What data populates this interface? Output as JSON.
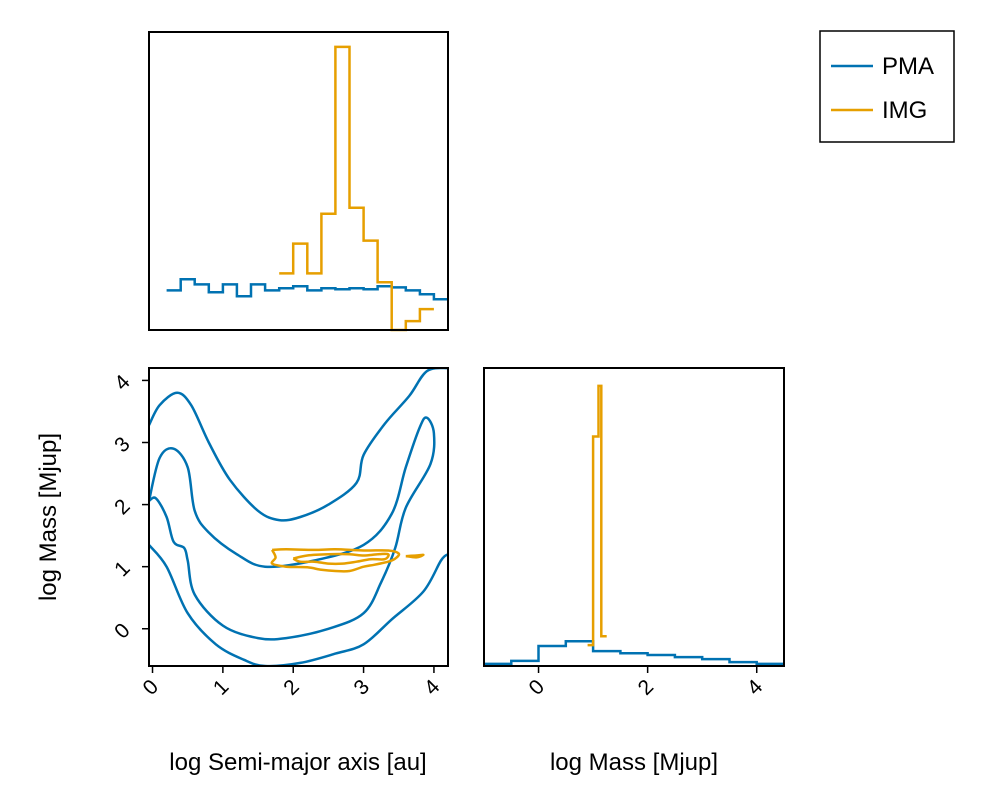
{
  "legend": {
    "position": "top-right",
    "entries": [
      {
        "label": "PMA",
        "color": "#0072b2"
      },
      {
        "label": "IMG",
        "color": "#e69f00"
      }
    ]
  },
  "chart_data": [
    {
      "panel": "top-left",
      "type": "histogram",
      "xlim": [
        -0.05,
        4.2
      ],
      "ylim": [
        0,
        1
      ],
      "x_variable": "log Semi-major axis [au]",
      "series": [
        {
          "name": "PMA",
          "color": "#0072b2",
          "edges": [
            0.2,
            0.4,
            0.6,
            0.8,
            1.0,
            1.2,
            1.4,
            1.6,
            1.8,
            2.0,
            2.2,
            2.4,
            2.6,
            2.8,
            3.0,
            3.2,
            3.4,
            3.6,
            3.8,
            4.0,
            4.2
          ],
          "heights": [
            0.133,
            0.17,
            0.153,
            0.127,
            0.153,
            0.113,
            0.153,
            0.133,
            0.14,
            0.147,
            0.133,
            0.14,
            0.137,
            0.14,
            0.137,
            0.147,
            0.143,
            0.133,
            0.12,
            0.103
          ]
        },
        {
          "name": "IMG",
          "color": "#e69f00",
          "edges": [
            1.8,
            2.0,
            2.2,
            2.4,
            2.6,
            2.8,
            3.0,
            3.2,
            3.4,
            3.6,
            3.8,
            4.0
          ],
          "heights": [
            0.19,
            0.29,
            0.19,
            0.39,
            0.95,
            0.41,
            0.3,
            0.16,
            0,
            0.03,
            0.07
          ]
        }
      ]
    },
    {
      "panel": "bottom-left",
      "type": "contour",
      "xlim": [
        -0.05,
        4.2
      ],
      "ylim": [
        -0.6,
        4.2
      ],
      "xlabel": "log Semi-major axis [au]",
      "ylabel": "log Mass [Mjup]",
      "xticks": [
        "0",
        "1",
        "2",
        "3",
        "4"
      ],
      "yticks": [
        "0",
        "1",
        "2",
        "3",
        "4"
      ],
      "xtick_values": [
        0,
        1,
        2,
        3,
        4
      ],
      "ytick_values": [
        0,
        1,
        2,
        3,
        4
      ],
      "series": [
        {
          "name": "PMA",
          "color": "#0072b2",
          "contours": [
            [
              [
                -0.05,
                3.28
              ],
              [
                0.1,
                3.6
              ],
              [
                0.35,
                3.8
              ],
              [
                0.55,
                3.6
              ],
              [
                0.8,
                3.0
              ],
              [
                1.1,
                2.4
              ],
              [
                1.5,
                1.9
              ],
              [
                1.8,
                1.75
              ],
              [
                2.1,
                1.8
              ],
              [
                2.5,
                2.0
              ],
              [
                2.9,
                2.35
              ],
              [
                3.0,
                2.8
              ],
              [
                3.3,
                3.3
              ],
              [
                3.65,
                3.75
              ],
              [
                3.9,
                4.15
              ],
              [
                4.2,
                4.2
              ]
            ],
            [
              [
                -0.05,
                2.06
              ],
              [
                0.1,
                2.75
              ],
              [
                0.3,
                2.9
              ],
              [
                0.5,
                2.6
              ],
              [
                0.6,
                1.9
              ],
              [
                0.8,
                1.55
              ],
              [
                1.2,
                1.2
              ],
              [
                1.6,
                1.0
              ],
              [
                2.3,
                1.1
              ],
              [
                3.0,
                1.35
              ],
              [
                3.4,
                1.85
              ],
              [
                3.6,
                2.6
              ],
              [
                3.8,
                3.25
              ],
              [
                3.9,
                3.4
              ],
              [
                4.0,
                3.15
              ],
              [
                3.95,
                2.65
              ],
              [
                3.6,
                1.95
              ],
              [
                3.45,
                1.3
              ],
              [
                3.25,
                0.75
              ],
              [
                3.0,
                0.25
              ],
              [
                2.5,
                0.0
              ],
              [
                1.9,
                -0.15
              ],
              [
                1.5,
                -0.15
              ],
              [
                1.0,
                0.05
              ],
              [
                0.6,
                0.55
              ],
              [
                0.5,
                1.1
              ],
              [
                0.45,
                1.3
              ],
              [
                0.3,
                1.4
              ],
              [
                0.2,
                1.8
              ],
              [
                0.05,
                2.1
              ],
              [
                -0.05,
                2.06
              ]
            ],
            [
              [
                -0.05,
                1.35
              ],
              [
                0.2,
                1.0
              ],
              [
                0.5,
                0.25
              ],
              [
                0.9,
                -0.25
              ],
              [
                1.3,
                -0.5
              ],
              [
                1.6,
                -0.6
              ],
              [
                2.1,
                -0.55
              ],
              [
                2.6,
                -0.4
              ],
              [
                3.0,
                -0.25
              ],
              [
                3.4,
                0.15
              ],
              [
                3.85,
                0.6
              ],
              [
                4.1,
                1.1
              ],
              [
                4.2,
                1.2
              ]
            ]
          ]
        },
        {
          "name": "IMG",
          "color": "#e69f00",
          "contours": [
            [
              [
                1.7,
                1.27
              ],
              [
                1.9,
                1.28
              ],
              [
                2.3,
                1.27
              ],
              [
                2.6,
                1.28
              ],
              [
                3.0,
                1.26
              ],
              [
                3.35,
                1.26
              ],
              [
                3.5,
                1.21
              ],
              [
                3.45,
                1.13
              ],
              [
                3.35,
                1.08
              ],
              [
                3.15,
                1.03
              ],
              [
                3.0,
                1.0
              ],
              [
                2.8,
                0.93
              ],
              [
                2.6,
                0.93
              ],
              [
                2.4,
                0.95
              ],
              [
                2.2,
                0.99
              ],
              [
                1.9,
                1.0
              ],
              [
                1.7,
                1.05
              ],
              [
                1.75,
                1.15
              ],
              [
                1.7,
                1.27
              ]
            ],
            [
              [
                2.0,
                1.13
              ],
              [
                2.2,
                1.18
              ],
              [
                2.5,
                1.2
              ],
              [
                2.8,
                1.2
              ],
              [
                3.0,
                1.18
              ],
              [
                3.2,
                1.2
              ],
              [
                3.35,
                1.2
              ],
              [
                3.3,
                1.12
              ],
              [
                3.1,
                1.12
              ],
              [
                2.9,
                1.08
              ],
              [
                2.7,
                1.05
              ],
              [
                2.5,
                1.05
              ],
              [
                2.3,
                1.08
              ],
              [
                2.1,
                1.08
              ],
              [
                2.0,
                1.13
              ]
            ],
            [
              [
                3.6,
                1.17
              ],
              [
                3.75,
                1.18
              ],
              [
                3.85,
                1.19
              ],
              [
                3.75,
                1.15
              ],
              [
                3.6,
                1.17
              ]
            ]
          ]
        }
      ]
    },
    {
      "panel": "bottom-right",
      "type": "histogram",
      "xlim": [
        -1.0,
        4.5
      ],
      "ylim": [
        0,
        1
      ],
      "xlabel": "log Mass [Mjup]",
      "xticks": [
        "0",
        "2",
        "4"
      ],
      "xtick_values": [
        0,
        2,
        4
      ],
      "series": [
        {
          "name": "PMA",
          "color": "#0072b2",
          "edges": [
            -1.0,
            -0.5,
            0.0,
            0.5,
            1.0,
            1.5,
            2.0,
            2.5,
            3.0,
            3.5,
            4.0,
            4.5
          ],
          "heights": [
            0.007,
            0.017,
            0.067,
            0.083,
            0.05,
            0.043,
            0.037,
            0.03,
            0.023,
            0.013,
            0.007
          ]
        },
        {
          "name": "IMG",
          "color": "#e69f00",
          "edges": [
            0.9,
            0.95,
            1.0,
            1.05,
            1.1,
            1.15,
            1.2,
            1.25
          ],
          "heights": [
            0.07,
            0.07,
            0.77,
            0.77,
            0.94,
            0.1,
            0.1
          ]
        }
      ]
    }
  ]
}
